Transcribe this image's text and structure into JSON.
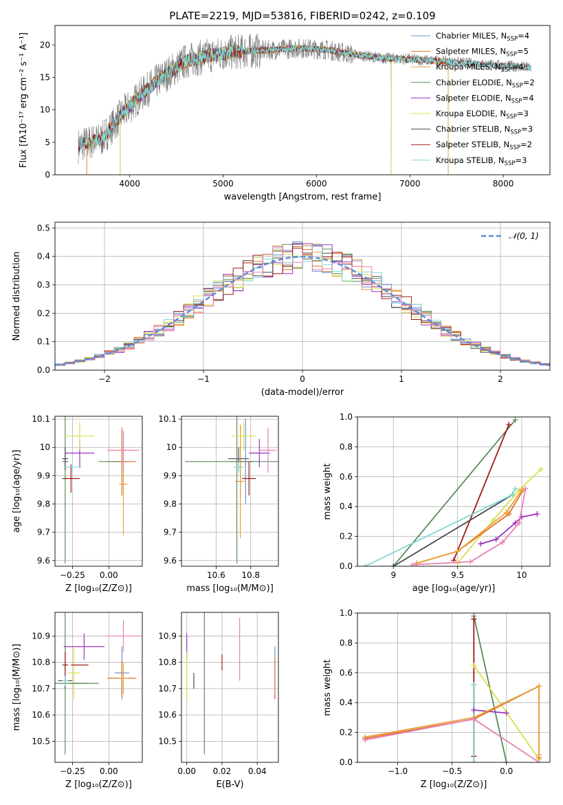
{
  "title": "PLATE=2219, MJD=53816, FIBERID=0242, z=0.109",
  "colors": {
    "chabrier_miles": "#6b8fd6",
    "salpeter_miles": "#e46f2a",
    "kroupa_miles": "#e8a13a",
    "chabrier_elodie": "#5a8a5a",
    "salpeter_elodie": "#9b30c0",
    "kroupa_elodie": "#d8e04a",
    "chabrier_stelib": "#4a4a4a",
    "salpeter_stelib": "#a01818",
    "kroupa_stelib": "#7fd6d6",
    "pink": "#e87fb4",
    "data_spectrum": "#777777",
    "normal_curve": "#5b8bd6",
    "grid": "#b0b0b0"
  },
  "chart_data": [
    {
      "id": "spectrum",
      "type": "line",
      "xlabel": "wavelength [Angstrom, rest frame]",
      "ylabel": "Flux [fλ10⁻¹⁷ erg cm⁻² s⁻¹ A⁻¹]",
      "xlim": [
        3200,
        8500
      ],
      "ylim": [
        0,
        23
      ],
      "xticks": [
        4000,
        5000,
        6000,
        7000,
        8000
      ],
      "yticks": [
        0,
        5,
        10,
        15,
        20
      ],
      "continuum": {
        "x": [
          3450,
          3700,
          3900,
          4100,
          4300,
          4600,
          4900,
          5200,
          5500,
          5800,
          6100,
          6400,
          6700,
          7000,
          7300,
          7600,
          7900,
          8200,
          8300
        ],
        "y": [
          4.5,
          5.5,
          9.0,
          12.0,
          14.5,
          17.5,
          18.5,
          19.0,
          19.2,
          19.5,
          19.3,
          18.5,
          18.0,
          17.8,
          17.5,
          17.2,
          16.9,
          16.6,
          16.5
        ]
      },
      "grid": false,
      "legend_position": "top-right",
      "legend": [
        {
          "label": "Chabrier MILES, N",
          "sub": "SSP",
          "tail": "=4",
          "color": "chabrier_miles"
        },
        {
          "label": "Salpeter MILES, N",
          "sub": "SSP",
          "tail": "=5",
          "color": "salpeter_miles"
        },
        {
          "label": "Kroupa MILES, N",
          "sub": "SSP",
          "tail": "=4",
          "color": "kroupa_miles"
        },
        {
          "label": "Chabrier ELODIE, N",
          "sub": "SSP",
          "tail": "=2",
          "color": "chabrier_elodie"
        },
        {
          "label": "Salpeter ELODIE, N",
          "sub": "SSP",
          "tail": "=4",
          "color": "salpeter_elodie"
        },
        {
          "label": "Kroupa ELODIE, N",
          "sub": "SSP",
          "tail": "=3",
          "color": "kroupa_elodie"
        },
        {
          "label": "Chabrier STELIB, N",
          "sub": "SSP",
          "tail": "=3",
          "color": "chabrier_stelib"
        },
        {
          "label": "Salpeter STELIB, N",
          "sub": "SSP",
          "tail": "=2",
          "color": "salpeter_stelib"
        },
        {
          "label": "Kroupa STELIB, N",
          "sub": "SSP",
          "tail": "=3",
          "color": "kroupa_stelib"
        }
      ]
    },
    {
      "id": "residuals",
      "type": "line",
      "xlabel": "(data-model)/error",
      "ylabel": "Normed distribution",
      "xlim": [
        -2.5,
        2.5
      ],
      "ylim": [
        0,
        0.52
      ],
      "xticks": [
        -2,
        -1,
        0,
        1,
        2
      ],
      "yticks": [
        0.0,
        0.1,
        0.2,
        0.3,
        0.4,
        0.5
      ],
      "grid": true,
      "legend_position": "top-right",
      "legend": [
        {
          "label": "𝒩(0, 1)",
          "color": "normal_curve"
        }
      ],
      "normal": {
        "mean": 0,
        "sigma": 1
      }
    },
    {
      "id": "age_vs_Z",
      "type": "scatter",
      "xlabel": "Z [log₁₀(Z/Z⊙)]",
      "ylabel": "age  [log₁₀(age/yr)]",
      "xlim": [
        -0.37,
        0.23
      ],
      "ylim": [
        9.58,
        10.11
      ],
      "xticks": [
        -0.25,
        0.0
      ],
      "xtick_labels": [
        "−0.25",
        "0.00"
      ],
      "yticks": [
        9.6,
        9.7,
        9.8,
        9.9,
        10.0,
        10.1
      ],
      "grid": true,
      "points": [
        {
          "c": "chabrier_miles",
          "x": 0.1,
          "y": 9.95,
          "xerr": 0.05,
          "yerr": 0.1
        },
        {
          "c": "salpeter_miles",
          "x": 0.09,
          "y": 9.95,
          "xerr": 0.1,
          "yerr": 0.12
        },
        {
          "c": "kroupa_miles",
          "x": 0.1,
          "y": 9.87,
          "xerr": 0.03,
          "yerr": 0.18
        },
        {
          "c": "chabrier_elodie",
          "x": -0.3,
          "y": 9.95,
          "xerr": 0.02,
          "yerr": 0.36
        },
        {
          "c": "salpeter_elodie",
          "x": -0.2,
          "y": 9.98,
          "xerr": 0.1,
          "yerr": 0.05
        },
        {
          "c": "kroupa_elodie",
          "x": -0.2,
          "y": 10.04,
          "xerr": 0.1,
          "yerr": 0.05
        },
        {
          "c": "chabrier_stelib",
          "x": -0.3,
          "y": 9.96,
          "xerr": 0.02,
          "yerr": 0.04
        },
        {
          "c": "salpeter_stelib",
          "x": -0.26,
          "y": 9.89,
          "xerr": 0.06,
          "yerr": 0.05
        },
        {
          "c": "kroupa_stelib",
          "x": -0.25,
          "y": 9.93,
          "xerr": 0.06,
          "yerr": 0.02
        },
        {
          "c": "pink",
          "x": 0.1,
          "y": 9.99,
          "xerr": 0.11,
          "yerr": 0.07
        },
        {
          "c": "chabrier_elodie",
          "x": 0.0,
          "y": 9.95,
          "xerr": 0.07,
          "yerr": 0.0
        }
      ]
    },
    {
      "id": "age_vs_mass",
      "type": "scatter",
      "xlabel": "mass [log₁₀(M/M⊙)]",
      "ylabel": "",
      "xlim": [
        10.4,
        10.96
      ],
      "ylim": [
        9.58,
        10.11
      ],
      "xticks": [
        10.6,
        10.8
      ],
      "yticks": [
        9.6,
        9.7,
        9.8,
        9.9,
        10.0,
        10.1
      ],
      "grid": true,
      "points": [
        {
          "c": "chabrier_miles",
          "x": 10.77,
          "y": 9.95,
          "xerr": 0.05,
          "yerr": 0.15
        },
        {
          "c": "salpeter_miles",
          "x": 10.74,
          "y": 9.95,
          "xerr": 0.06,
          "yerr": 0.13
        },
        {
          "c": "kroupa_miles",
          "x": 10.74,
          "y": 9.88,
          "xerr": 0.03,
          "yerr": 0.2
        },
        {
          "c": "chabrier_elodie",
          "x": 10.72,
          "y": 9.95,
          "xerr": 0.3,
          "yerr": 0.36
        },
        {
          "c": "salpeter_elodie",
          "x": 10.85,
          "y": 9.98,
          "xerr": 0.06,
          "yerr": 0.05
        },
        {
          "c": "kroupa_elodie",
          "x": 10.76,
          "y": 10.04,
          "xerr": 0.07,
          "yerr": 0.05
        },
        {
          "c": "chabrier_stelib",
          "x": 10.73,
          "y": 9.96,
          "xerr": 0.06,
          "yerr": 0.04
        },
        {
          "c": "salpeter_stelib",
          "x": 10.79,
          "y": 9.89,
          "xerr": 0.04,
          "yerr": 0.06
        },
        {
          "c": "kroupa_stelib",
          "x": 10.73,
          "y": 9.93,
          "xerr": 0.03,
          "yerr": 0.02
        },
        {
          "c": "pink",
          "x": 10.9,
          "y": 9.99,
          "xerr": 0.05,
          "yerr": 0.08
        }
      ]
    },
    {
      "id": "massweight_vs_age",
      "type": "line",
      "xlabel": "age  [log₁₀(age/yr)]",
      "ylabel": "mass weight",
      "xlim": [
        8.72,
        10.22
      ],
      "ylim": [
        0.0,
        1.0
      ],
      "xticks": [
        9.0,
        9.5,
        10.0
      ],
      "yticks": [
        0.0,
        0.2,
        0.4,
        0.6,
        0.8,
        1.0
      ],
      "grid": true,
      "series": [
        {
          "c": "chabrier_elodie",
          "x": [
            9.0,
            9.95
          ],
          "y": [
            0.0,
            0.98
          ]
        },
        {
          "c": "salpeter_stelib",
          "x": [
            9.47,
            9.9
          ],
          "y": [
            0.04,
            0.95
          ]
        },
        {
          "c": "chabrier_stelib",
          "x": [
            9.0,
            9.93
          ],
          "y": [
            0.0,
            0.48
          ]
        },
        {
          "c": "kroupa_stelib",
          "x": [
            8.78,
            9.93,
            9.95
          ],
          "y": [
            0.0,
            0.48,
            0.52
          ]
        },
        {
          "c": "kroupa_elodie",
          "x": [
            9.5,
            9.78,
            9.98,
            10.15
          ],
          "y": [
            0.02,
            0.31,
            0.51,
            0.65
          ]
        },
        {
          "c": "salpeter_miles",
          "x": [
            9.18,
            9.5,
            9.9,
            10.01
          ],
          "y": [
            0.02,
            0.1,
            0.35,
            0.51
          ]
        },
        {
          "c": "kroupa_miles",
          "x": [
            9.18,
            9.5,
            9.88,
            10.0
          ],
          "y": [
            0.02,
            0.1,
            0.36,
            0.51
          ]
        },
        {
          "c": "salpeter_elodie",
          "x": [
            9.68,
            9.8,
            9.95,
            10.0,
            10.12
          ],
          "y": [
            0.15,
            0.18,
            0.29,
            0.33,
            0.35
          ]
        },
        {
          "c": "pink",
          "x": [
            9.15,
            9.6,
            9.85,
            9.98,
            10.03
          ],
          "y": [
            0.01,
            0.03,
            0.16,
            0.29,
            0.52
          ]
        }
      ]
    },
    {
      "id": "mass_vs_Z",
      "type": "scatter",
      "xlabel": "Z [log₁₀(Z/Z⊙)]",
      "ylabel": "mass [log₁₀(M/M⊙)]",
      "xlim": [
        -0.37,
        0.23
      ],
      "ylim": [
        10.42,
        10.99
      ],
      "xticks": [
        -0.25,
        0.0
      ],
      "xtick_labels": [
        "−0.25",
        "0.00"
      ],
      "yticks": [
        10.5,
        10.6,
        10.7,
        10.8,
        10.9
      ],
      "grid": true,
      "points": [
        {
          "c": "chabrier_miles",
          "x": 0.09,
          "y": 10.76,
          "xerr": 0.05,
          "yerr": 0.1
        },
        {
          "c": "salpeter_miles",
          "x": 0.09,
          "y": 10.74,
          "xerr": 0.1,
          "yerr": 0.07
        },
        {
          "c": "kroupa_miles",
          "x": 0.1,
          "y": 10.74,
          "xerr": 0.03,
          "yerr": 0.06
        },
        {
          "c": "chabrier_elodie",
          "x": -0.3,
          "y": 10.72,
          "xerr": 0.15,
          "yerr": 0.27
        },
        {
          "c": "salpeter_elodie",
          "x": -0.17,
          "y": 10.86,
          "xerr": 0.14,
          "yerr": 0.05
        },
        {
          "c": "kroupa_elodie",
          "x": -0.24,
          "y": 10.76,
          "xerr": 0.04,
          "yerr": 0.1
        },
        {
          "c": "chabrier_stelib",
          "x": -0.3,
          "y": 10.73,
          "xerr": 0.05,
          "yerr": 0.03
        },
        {
          "c": "salpeter_stelib",
          "x": -0.3,
          "y": 10.79,
          "xerr": 0.02,
          "yerr": 0.05
        },
        {
          "c": "salpeter_stelib",
          "x": -0.2,
          "y": 10.79,
          "xerr": 0.06,
          "yerr": 0.0
        },
        {
          "c": "kroupa_stelib",
          "x": -0.3,
          "y": 10.73,
          "xerr": 0.02,
          "yerr": 0.02
        },
        {
          "c": "pink",
          "x": 0.1,
          "y": 10.9,
          "xerr": 0.12,
          "yerr": 0.06
        },
        {
          "c": "chabrier_elodie",
          "x": -0.17,
          "y": 10.72,
          "xerr": 0.1,
          "yerr": 0.0
        }
      ]
    },
    {
      "id": "mass_vs_ebv",
      "type": "scatter",
      "xlabel": "E(B-V)",
      "ylabel": "",
      "xlim": [
        -0.003,
        0.052
      ],
      "ylim": [
        10.42,
        10.99
      ],
      "xticks": [
        0.0,
        0.02,
        0.04
      ],
      "xtick_labels": [
        "0.00",
        "0.02",
        "0.04"
      ],
      "yticks": [
        10.5,
        10.6,
        10.7,
        10.8,
        10.9
      ],
      "grid": true,
      "points": [
        {
          "c": "chabrier_miles",
          "x": 0.05,
          "y": 10.76,
          "xerr": 0,
          "yerr": 0.1
        },
        {
          "c": "salpeter_miles",
          "x": 0.05,
          "y": 10.74,
          "xerr": 0,
          "yerr": 0.08
        },
        {
          "c": "chabrier_elodie",
          "x": 0.01,
          "y": 10.72,
          "xerr": 0,
          "yerr": 0.27
        },
        {
          "c": "salpeter_elodie",
          "x": 0.0,
          "y": 10.86,
          "xerr": 0,
          "yerr": 0.05
        },
        {
          "c": "kroupa_elodie",
          "x": 0.0,
          "y": 10.75,
          "xerr": 0,
          "yerr": 0.09
        },
        {
          "c": "chabrier_stelib",
          "x": 0.004,
          "y": 10.73,
          "xerr": 0,
          "yerr": 0.03
        },
        {
          "c": "salpeter_stelib",
          "x": 0.02,
          "y": 10.8,
          "xerr": 0,
          "yerr": 0.03
        },
        {
          "c": "pink",
          "x": 0.03,
          "y": 10.85,
          "xerr": 0,
          "yerr": 0.12
        }
      ]
    },
    {
      "id": "massweight_vs_Z",
      "type": "line",
      "xlabel": "Z [log₁₀(Z/Z⊙)]",
      "ylabel": "mass weight",
      "xlim": [
        -1.37,
        0.4
      ],
      "ylim": [
        0.0,
        1.0
      ],
      "xticks": [
        -1.0,
        -0.5,
        0.0
      ],
      "xtick_labels": [
        "−1.0",
        "−0.5",
        "0.0"
      ],
      "yticks": [
        0.0,
        0.2,
        0.4,
        0.6,
        0.8,
        1.0
      ],
      "grid": true,
      "series": [
        {
          "c": "chabrier_elodie",
          "x": [
            -0.3,
            0.0
          ],
          "y": [
            0.98,
            0.0
          ]
        },
        {
          "c": "salpeter_stelib",
          "x": [
            -0.3,
            -0.3
          ],
          "y": [
            0.04,
            0.96
          ]
        },
        {
          "c": "chabrier_stelib",
          "x": [
            -0.3,
            -0.3
          ],
          "y": [
            0.0,
            0.52
          ]
        },
        {
          "c": "kroupa_stelib",
          "x": [
            -0.3,
            -0.3
          ],
          "y": [
            0.0,
            0.52
          ]
        },
        {
          "c": "kroupa_elodie",
          "x": [
            -0.3,
            0.3
          ],
          "y": [
            0.65,
            0.02
          ]
        },
        {
          "c": "salpeter_elodie",
          "x": [
            -0.3,
            0.0
          ],
          "y": [
            0.35,
            0.33
          ]
        },
        {
          "c": "salpeter_miles",
          "x": [
            -1.3,
            -0.3,
            0.3,
            0.3
          ],
          "y": [
            0.16,
            0.29,
            0.51,
            0.03
          ]
        },
        {
          "c": "kroupa_miles",
          "x": [
            -1.3,
            -0.3,
            0.3,
            0.3
          ],
          "y": [
            0.17,
            0.3,
            0.51,
            0.05
          ]
        },
        {
          "c": "pink",
          "x": [
            -1.3,
            -0.3,
            0.3
          ],
          "y": [
            0.15,
            0.29,
            0.0
          ]
        }
      ]
    }
  ]
}
